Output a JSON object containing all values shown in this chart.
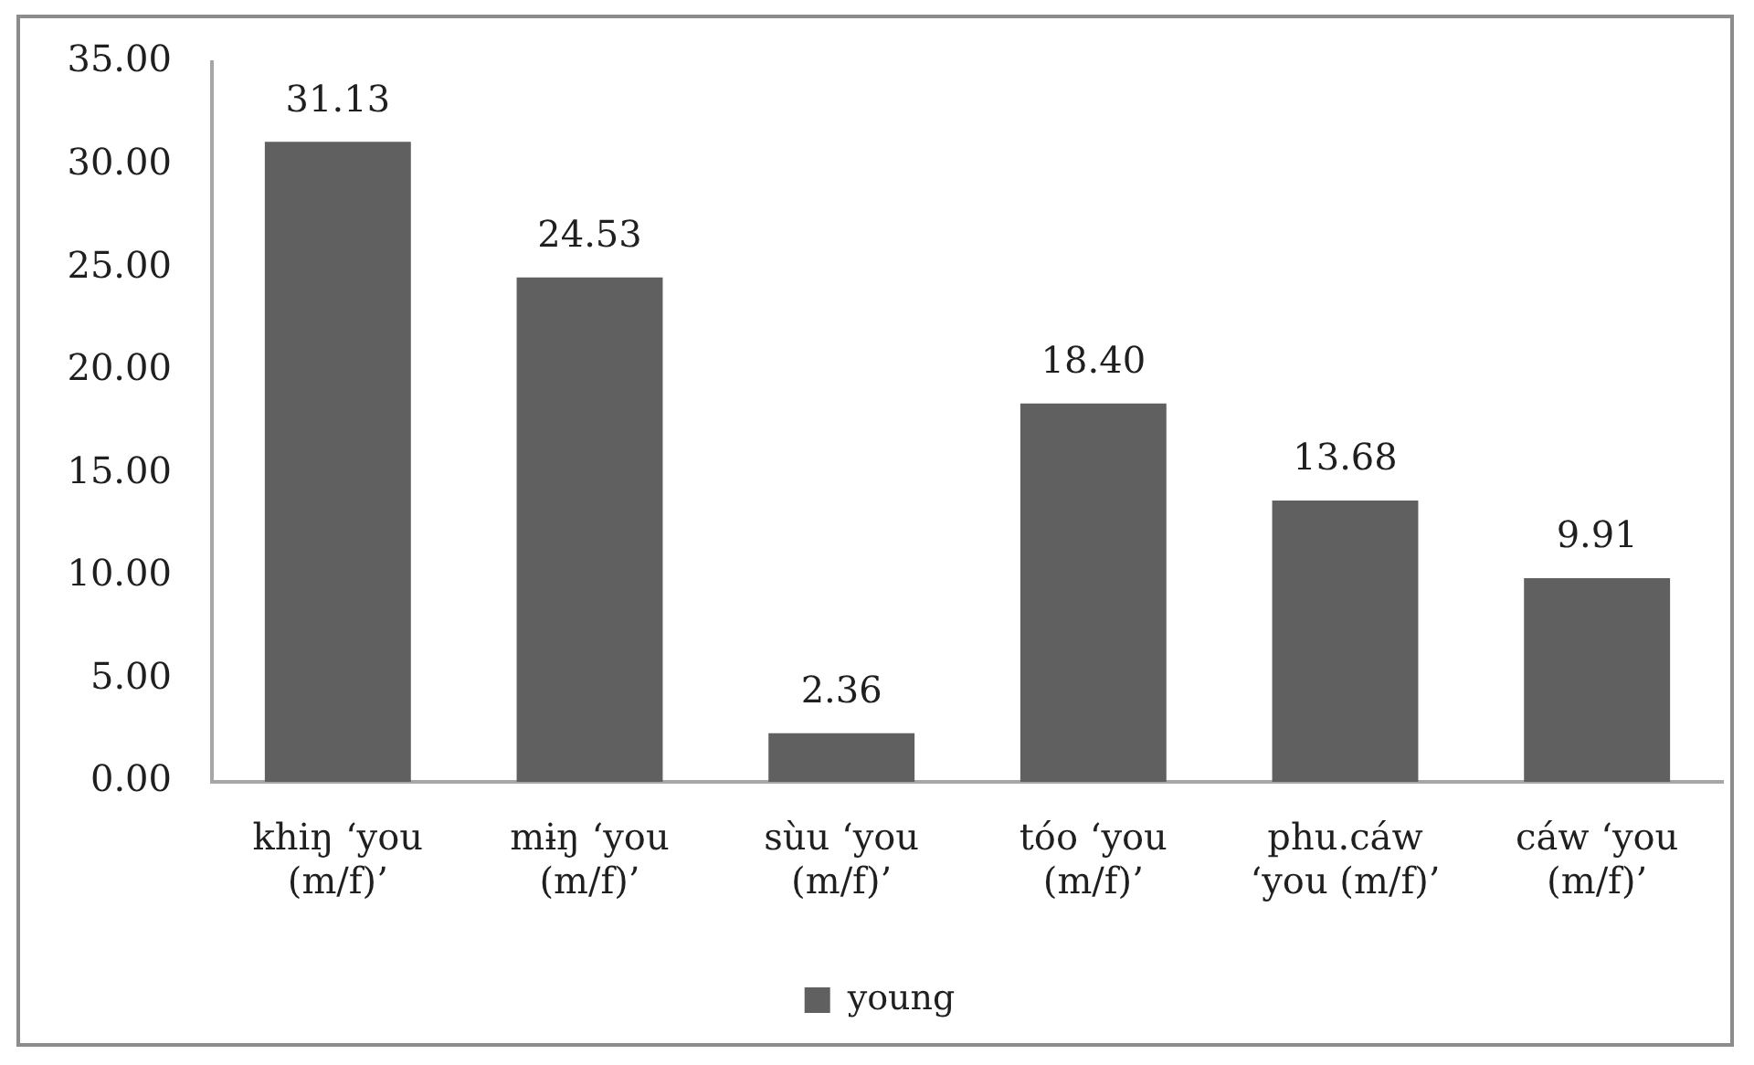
{
  "chart_data": {
    "type": "bar",
    "categories": [
      "khiŋ ‘you (m/f)’",
      "mɨŋ ‘you (m/f)’",
      "sùu ‘you (m/f)’",
      "tóo ‘you (m/f)’",
      "phu.cáw ‘you (m/f)’",
      "cáw ‘you (m/f)’"
    ],
    "series": [
      {
        "name": "young",
        "color": "#606060",
        "values": [
          31.13,
          24.53,
          2.36,
          18.4,
          13.68,
          9.91
        ],
        "value_labels": [
          "31.13",
          "24.53",
          "2.36",
          "18.40",
          "13.68",
          "9.91"
        ]
      }
    ],
    "ylim": [
      0,
      35
    ],
    "yticks": [
      {
        "value": 0,
        "label": "0.00"
      },
      {
        "value": 5,
        "label": "5.00"
      },
      {
        "value": 10,
        "label": "10.00"
      },
      {
        "value": 15,
        "label": "15.00"
      },
      {
        "value": 20,
        "label": "20.00"
      },
      {
        "value": 25,
        "label": "25.00"
      },
      {
        "value": 30,
        "label": "30.00"
      },
      {
        "value": 35,
        "label": "35.00"
      }
    ],
    "grid": false,
    "legend": "bottom"
  }
}
